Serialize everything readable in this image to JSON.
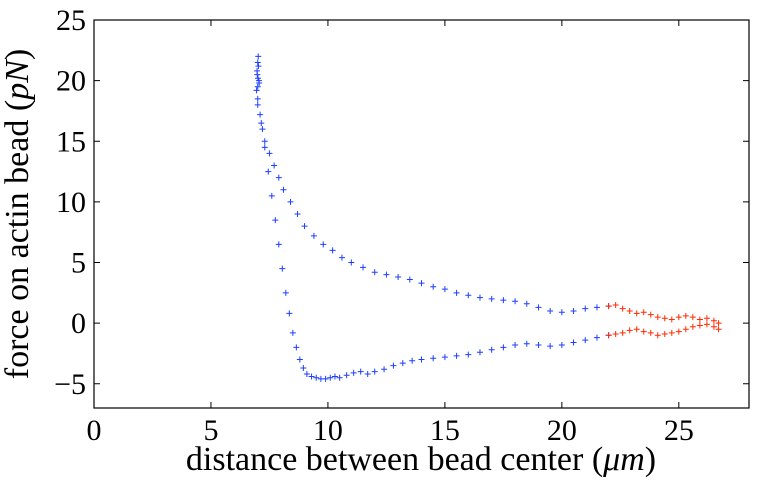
{
  "chart_data": {
    "type": "scatter",
    "xlabel": "distance between bead center",
    "xlabel_unit": "μm",
    "ylabel": "force on actin bead",
    "ylabel_unit": "pN",
    "xlim": [
      0,
      28
    ],
    "ylim": [
      -7,
      25
    ],
    "xticks": [
      0,
      5,
      10,
      15,
      20,
      25
    ],
    "yticks": [
      -5,
      0,
      5,
      10,
      15,
      20,
      25
    ],
    "xtick_labels": [
      "0",
      "5",
      "10",
      "15",
      "20",
      "25"
    ],
    "ytick_labels": [
      "−5",
      "0",
      "5",
      "10",
      "15",
      "20",
      "25"
    ],
    "grid": false,
    "marker": "+",
    "series": [
      {
        "color": "#1f3fff",
        "segment": "blue approach/retract cluster",
        "x": [
          6.95,
          6.98,
          7.0,
          7.02,
          7.05,
          7.0,
          6.97,
          7.03,
          7.06,
          7.01,
          7.0,
          7.1,
          7.2,
          7.3,
          7.5,
          7.7,
          7.9,
          8.1,
          8.4,
          8.7,
          9.0,
          9.4,
          9.8,
          10.2,
          10.6,
          11.0,
          11.5,
          12.0,
          12.5,
          13.0,
          13.5,
          14.0,
          14.5,
          15.0,
          15.5,
          16.0,
          16.5,
          17.0,
          17.5,
          18.0,
          18.5,
          19.0,
          19.5,
          20.0,
          20.5,
          21.0,
          21.5,
          22.0,
          7.0,
          7.15,
          7.3,
          7.45,
          7.6,
          7.75,
          7.9,
          8.05,
          8.2,
          8.35,
          8.5,
          8.65,
          8.8,
          8.95,
          9.1,
          9.3,
          9.5,
          9.7,
          9.9,
          10.1,
          10.3,
          10.5,
          10.8,
          11.1,
          11.4,
          11.7,
          12.0,
          12.4,
          12.8,
          13.2,
          13.6,
          14.0,
          14.5,
          15.0,
          15.5,
          16.0,
          16.5,
          17.0,
          17.5,
          18.0,
          18.5,
          19.0,
          19.5,
          20.0,
          20.5,
          21.0,
          21.5,
          22.0
        ],
        "y": [
          19.2,
          20.5,
          21.5,
          22.0,
          20.0,
          19.5,
          20.8,
          21.2,
          19.8,
          20.2,
          18.0,
          17.2,
          16.0,
          15.0,
          14.0,
          13.0,
          12.0,
          11.0,
          10.0,
          9.0,
          8.0,
          7.2,
          6.5,
          6.0,
          5.4,
          5.0,
          4.6,
          4.2,
          4.0,
          3.8,
          3.6,
          3.3,
          3.0,
          2.8,
          2.5,
          2.3,
          2.1,
          2.0,
          1.9,
          1.8,
          1.6,
          1.3,
          1.0,
          0.9,
          1.0,
          1.2,
          1.3,
          1.4,
          18.5,
          16.5,
          14.5,
          12.5,
          10.5,
          8.5,
          6.5,
          4.5,
          2.5,
          0.8,
          -0.8,
          -2.0,
          -3.0,
          -3.7,
          -4.2,
          -4.4,
          -4.5,
          -4.6,
          -4.6,
          -4.5,
          -4.4,
          -4.5,
          -4.3,
          -4.1,
          -4.0,
          -4.2,
          -4.0,
          -3.8,
          -3.5,
          -3.3,
          -3.1,
          -3.0,
          -2.9,
          -2.8,
          -2.7,
          -2.6,
          -2.4,
          -2.2,
          -2.0,
          -1.8,
          -1.7,
          -1.8,
          -1.9,
          -1.8,
          -1.6,
          -1.4,
          -1.2,
          -1.0
        ]
      },
      {
        "color": "#ff2a00",
        "segment": "red tail",
        "x": [
          22.0,
          22.3,
          22.6,
          22.9,
          23.2,
          23.5,
          23.8,
          24.1,
          24.4,
          24.7,
          25.0,
          25.3,
          25.6,
          25.9,
          26.2,
          26.5,
          26.7,
          22.0,
          22.3,
          22.6,
          22.9,
          23.2,
          23.5,
          23.8,
          24.1,
          24.4,
          24.7,
          25.0,
          25.3,
          25.6,
          25.9,
          26.2,
          26.5,
          26.7
        ],
        "y": [
          1.4,
          1.5,
          1.2,
          1.0,
          0.8,
          0.9,
          0.7,
          0.5,
          0.4,
          0.3,
          0.5,
          0.6,
          0.5,
          0.3,
          0.4,
          0.2,
          0.0,
          -1.0,
          -0.9,
          -0.8,
          -0.6,
          -0.5,
          -0.7,
          -0.8,
          -1.0,
          -0.9,
          -0.8,
          -0.7,
          -0.5,
          -0.3,
          -0.2,
          -0.1,
          -0.3,
          -0.5
        ]
      }
    ]
  }
}
